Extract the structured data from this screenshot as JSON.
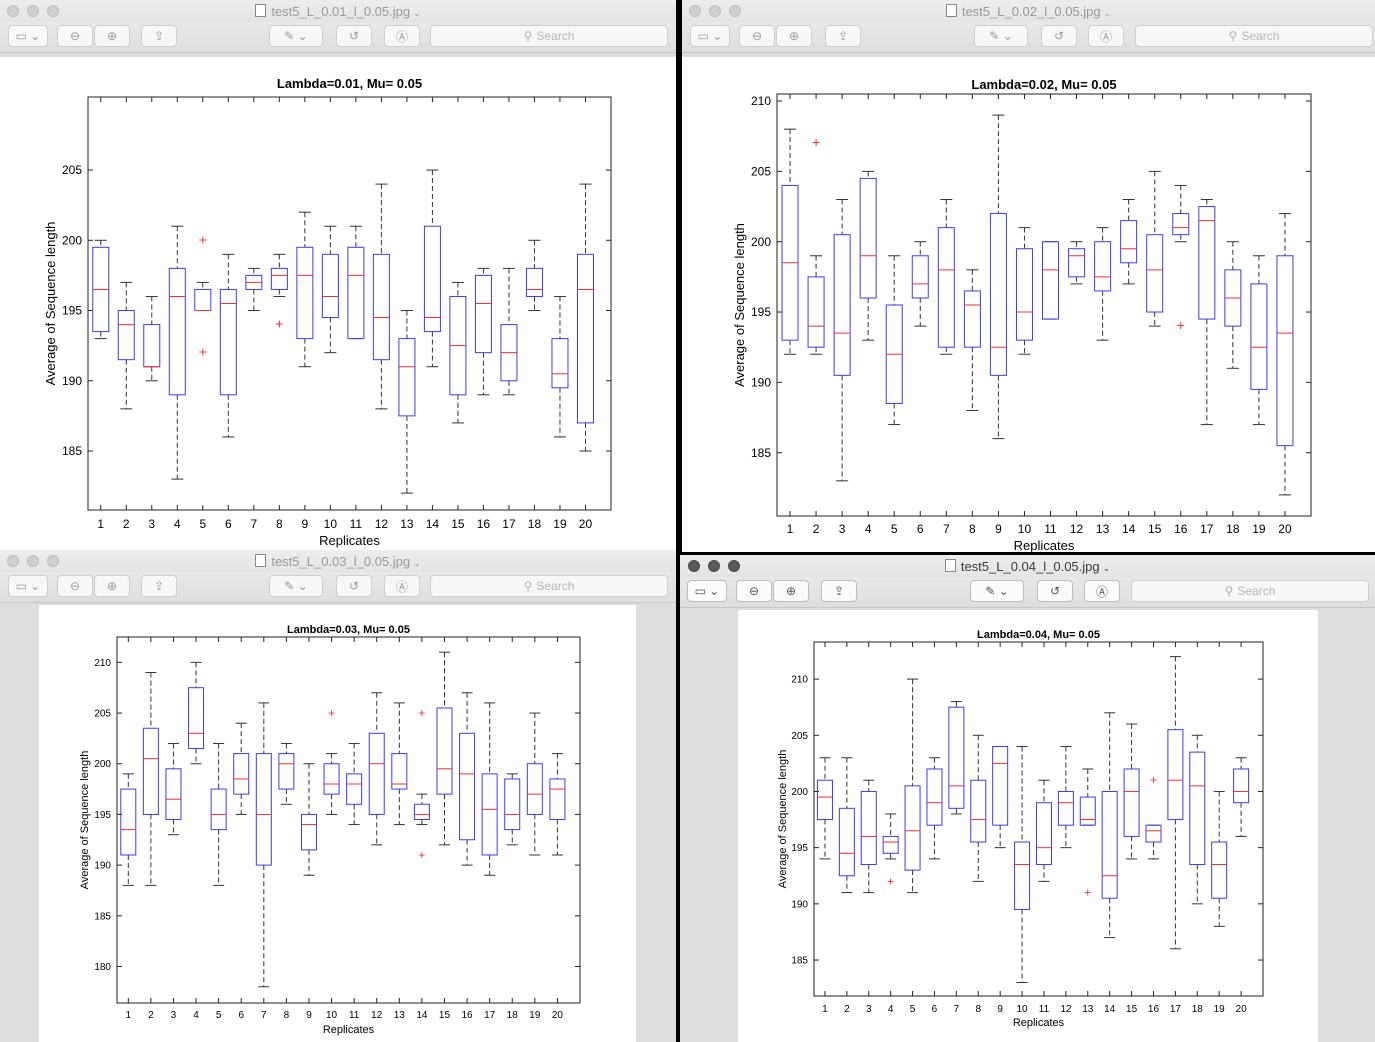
{
  "search_placeholder": "Search",
  "icons": [
    "sidebar-icon",
    "zoom-out-icon",
    "zoom-in-icon",
    "share-icon",
    "markup-pen-icon",
    "rotate-icon",
    "annotate-icon",
    "search-icon"
  ],
  "windows": [
    {
      "file_name": "test5_L_0.01_l_0.05.jpg",
      "chart_data": {
        "type": "box",
        "title": "Lambda=0.01, Mu= 0.05",
        "xlabel": "Replicates",
        "ylabel": "Average of Sequence length",
        "ylim": [
          180.8,
          210.2
        ],
        "yticks": [
          185,
          190,
          195,
          200,
          205
        ],
        "categories": [
          "1",
          "2",
          "3",
          "4",
          "5",
          "6",
          "7",
          "8",
          "9",
          "10",
          "11",
          "12",
          "13",
          "14",
          "15",
          "16",
          "17",
          "18",
          "19",
          "20"
        ],
        "boxes": [
          {
            "q1": 193.5,
            "median": 196.5,
            "q3": 199.5,
            "whisker_low": 193,
            "whisker_high": 200,
            "outliers": []
          },
          {
            "q1": 191.5,
            "median": 194,
            "q3": 195,
            "whisker_low": 188,
            "whisker_high": 197,
            "outliers": []
          },
          {
            "q1": 191,
            "median": 191,
            "q3": 194,
            "whisker_low": 190,
            "whisker_high": 196,
            "outliers": []
          },
          {
            "q1": 189,
            "median": 196,
            "q3": 198,
            "whisker_low": 183,
            "whisker_high": 201,
            "outliers": []
          },
          {
            "q1": 195,
            "median": 195,
            "q3": 196.5,
            "whisker_low": 195,
            "whisker_high": 197,
            "outliers": [
              200,
              192
            ]
          },
          {
            "q1": 189,
            "median": 195.5,
            "q3": 196.5,
            "whisker_low": 186,
            "whisker_high": 199,
            "outliers": []
          },
          {
            "q1": 196.5,
            "median": 197,
            "q3": 197.5,
            "whisker_low": 195,
            "whisker_high": 198,
            "outliers": []
          },
          {
            "q1": 196.5,
            "median": 197.5,
            "q3": 198,
            "whisker_low": 196,
            "whisker_high": 199,
            "outliers": [
              194
            ]
          },
          {
            "q1": 193,
            "median": 197.5,
            "q3": 199.5,
            "whisker_low": 191,
            "whisker_high": 202,
            "outliers": []
          },
          {
            "q1": 194.5,
            "median": 196,
            "q3": 199,
            "whisker_low": 192,
            "whisker_high": 201,
            "outliers": []
          },
          {
            "q1": 193,
            "median": 197.5,
            "q3": 199.5,
            "whisker_low": 193,
            "whisker_high": 201,
            "outliers": []
          },
          {
            "q1": 191.5,
            "median": 194.5,
            "q3": 199,
            "whisker_low": 188,
            "whisker_high": 204,
            "outliers": []
          },
          {
            "q1": 187.5,
            "median": 191,
            "q3": 193,
            "whisker_low": 182,
            "whisker_high": 195,
            "outliers": []
          },
          {
            "q1": 193.5,
            "median": 194.5,
            "q3": 201,
            "whisker_low": 191,
            "whisker_high": 205,
            "outliers": []
          },
          {
            "q1": 189,
            "median": 192.5,
            "q3": 196,
            "whisker_low": 187,
            "whisker_high": 197,
            "outliers": []
          },
          {
            "q1": 192,
            "median": 195.5,
            "q3": 197.5,
            "whisker_low": 189,
            "whisker_high": 198,
            "outliers": []
          },
          {
            "q1": 190,
            "median": 192,
            "q3": 194,
            "whisker_low": 189,
            "whisker_high": 198,
            "outliers": []
          },
          {
            "q1": 196,
            "median": 196.5,
            "q3": 198,
            "whisker_low": 195,
            "whisker_high": 200,
            "outliers": []
          },
          {
            "q1": 189.5,
            "median": 190.5,
            "q3": 193,
            "whisker_low": 186,
            "whisker_high": 196,
            "outliers": []
          },
          {
            "q1": 187,
            "median": 196.5,
            "q3": 199,
            "whisker_low": 185,
            "whisker_high": 204,
            "outliers": []
          }
        ]
      }
    },
    {
      "file_name": "test5_L_0.02_l_0.05.jpg",
      "chart_data": {
        "type": "box",
        "title": "Lambda=0.02, Mu= 0.05",
        "xlabel": "Replicates",
        "ylabel": "Average of Sequence length",
        "ylim": [
          180.5,
          210.5
        ],
        "yticks": [
          185,
          190,
          195,
          200,
          205,
          210
        ],
        "categories": [
          "1",
          "2",
          "3",
          "4",
          "5",
          "6",
          "7",
          "8",
          "9",
          "10",
          "11",
          "12",
          "13",
          "14",
          "15",
          "16",
          "17",
          "18",
          "19",
          "20"
        ],
        "boxes": [
          {
            "q1": 193,
            "median": 198.5,
            "q3": 204,
            "whisker_low": 192,
            "whisker_high": 208,
            "outliers": []
          },
          {
            "q1": 192.5,
            "median": 194,
            "q3": 197.5,
            "whisker_low": 192,
            "whisker_high": 199,
            "outliers": [
              207
            ]
          },
          {
            "q1": 190.5,
            "median": 193.5,
            "q3": 200.5,
            "whisker_low": 183,
            "whisker_high": 203,
            "outliers": []
          },
          {
            "q1": 196,
            "median": 199,
            "q3": 204.5,
            "whisker_low": 193,
            "whisker_high": 205,
            "outliers": []
          },
          {
            "q1": 188.5,
            "median": 192,
            "q3": 195.5,
            "whisker_low": 187,
            "whisker_high": 199,
            "outliers": []
          },
          {
            "q1": 196,
            "median": 197,
            "q3": 199,
            "whisker_low": 194,
            "whisker_high": 200,
            "outliers": []
          },
          {
            "q1": 192.5,
            "median": 198,
            "q3": 201,
            "whisker_low": 192,
            "whisker_high": 203,
            "outliers": []
          },
          {
            "q1": 192.5,
            "median": 195.5,
            "q3": 196.5,
            "whisker_low": 188,
            "whisker_high": 198,
            "outliers": []
          },
          {
            "q1": 190.5,
            "median": 192.5,
            "q3": 202,
            "whisker_low": 186,
            "whisker_high": 209,
            "outliers": []
          },
          {
            "q1": 193,
            "median": 195,
            "q3": 199.5,
            "whisker_low": 192,
            "whisker_high": 201,
            "outliers": []
          },
          {
            "q1": 194.5,
            "median": 198,
            "q3": 200,
            "whisker_low": 194.5,
            "whisker_high": 200,
            "outliers": []
          },
          {
            "q1": 197.5,
            "median": 199,
            "q3": 199.5,
            "whisker_low": 197,
            "whisker_high": 200,
            "outliers": []
          },
          {
            "q1": 196.5,
            "median": 197.5,
            "q3": 200,
            "whisker_low": 193,
            "whisker_high": 201,
            "outliers": []
          },
          {
            "q1": 198.5,
            "median": 199.5,
            "q3": 201.5,
            "whisker_low": 197,
            "whisker_high": 203,
            "outliers": []
          },
          {
            "q1": 195,
            "median": 198,
            "q3": 200.5,
            "whisker_low": 194,
            "whisker_high": 205,
            "outliers": []
          },
          {
            "q1": 200.5,
            "median": 201,
            "q3": 202,
            "whisker_low": 200,
            "whisker_high": 204,
            "outliers": [
              194
            ]
          },
          {
            "q1": 194.5,
            "median": 201.5,
            "q3": 202.5,
            "whisker_low": 187,
            "whisker_high": 203,
            "outliers": []
          },
          {
            "q1": 194,
            "median": 196,
            "q3": 198,
            "whisker_low": 191,
            "whisker_high": 200,
            "outliers": []
          },
          {
            "q1": 189.5,
            "median": 192.5,
            "q3": 197,
            "whisker_low": 187,
            "whisker_high": 199,
            "outliers": []
          },
          {
            "q1": 185.5,
            "median": 193.5,
            "q3": 199,
            "whisker_low": 182,
            "whisker_high": 202,
            "outliers": []
          }
        ]
      }
    },
    {
      "file_name": "test5_L_0.03_l_0.05.jpg",
      "chart_data": {
        "type": "box",
        "title": "Lambda=0.03, Mu= 0.05",
        "xlabel": "Replicates",
        "ylabel": "Average of Sequence length",
        "ylim": [
          176.4,
          212.5
        ],
        "yticks": [
          180,
          185,
          190,
          195,
          200,
          205,
          210
        ],
        "categories": [
          "1",
          "2",
          "3",
          "4",
          "5",
          "6",
          "7",
          "8",
          "9",
          "10",
          "11",
          "12",
          "13",
          "14",
          "15",
          "16",
          "17",
          "18",
          "19",
          "20"
        ],
        "boxes": [
          {
            "q1": 191,
            "median": 193.5,
            "q3": 197.5,
            "whisker_low": 188,
            "whisker_high": 199,
            "outliers": []
          },
          {
            "q1": 195,
            "median": 200.5,
            "q3": 203.5,
            "whisker_low": 188,
            "whisker_high": 209,
            "outliers": []
          },
          {
            "q1": 194.5,
            "median": 196.5,
            "q3": 199.5,
            "whisker_low": 193,
            "whisker_high": 202,
            "outliers": []
          },
          {
            "q1": 201.5,
            "median": 203,
            "q3": 207.5,
            "whisker_low": 200,
            "whisker_high": 210,
            "outliers": []
          },
          {
            "q1": 193.5,
            "median": 195,
            "q3": 197.5,
            "whisker_low": 188,
            "whisker_high": 202,
            "outliers": []
          },
          {
            "q1": 197,
            "median": 198.5,
            "q3": 201,
            "whisker_low": 195,
            "whisker_high": 204,
            "outliers": []
          },
          {
            "q1": 190,
            "median": 195,
            "q3": 201,
            "whisker_low": 178,
            "whisker_high": 206,
            "outliers": []
          },
          {
            "q1": 197.5,
            "median": 200,
            "q3": 201,
            "whisker_low": 196,
            "whisker_high": 202,
            "outliers": []
          },
          {
            "q1": 191.5,
            "median": 194,
            "q3": 195,
            "whisker_low": 189,
            "whisker_high": 200,
            "outliers": []
          },
          {
            "q1": 197,
            "median": 198,
            "q3": 200,
            "whisker_low": 195,
            "whisker_high": 201,
            "outliers": [
              205
            ]
          },
          {
            "q1": 196,
            "median": 198,
            "q3": 199,
            "whisker_low": 194,
            "whisker_high": 202,
            "outliers": []
          },
          {
            "q1": 195,
            "median": 200,
            "q3": 203,
            "whisker_low": 192,
            "whisker_high": 207,
            "outliers": []
          },
          {
            "q1": 197.5,
            "median": 198,
            "q3": 201,
            "whisker_low": 194,
            "whisker_high": 206,
            "outliers": []
          },
          {
            "q1": 194.5,
            "median": 195,
            "q3": 196,
            "whisker_low": 194,
            "whisker_high": 197,
            "outliers": [
              205,
              191
            ]
          },
          {
            "q1": 197,
            "median": 199.5,
            "q3": 205.5,
            "whisker_low": 192,
            "whisker_high": 211,
            "outliers": []
          },
          {
            "q1": 192.5,
            "median": 199,
            "q3": 203,
            "whisker_low": 190,
            "whisker_high": 207,
            "outliers": []
          },
          {
            "q1": 191,
            "median": 195.5,
            "q3": 199,
            "whisker_low": 189,
            "whisker_high": 206,
            "outliers": []
          },
          {
            "q1": 193.5,
            "median": 195,
            "q3": 198.5,
            "whisker_low": 192,
            "whisker_high": 199,
            "outliers": []
          },
          {
            "q1": 195,
            "median": 197,
            "q3": 200,
            "whisker_low": 191,
            "whisker_high": 205,
            "outliers": []
          },
          {
            "q1": 194.5,
            "median": 197.5,
            "q3": 198.5,
            "whisker_low": 191,
            "whisker_high": 201,
            "outliers": []
          }
        ]
      }
    },
    {
      "file_name": "test5_L_0.04_l_0.05.jpg",
      "chart_data": {
        "type": "box",
        "title": "Lambda=0.04, Mu= 0.05",
        "xlabel": "Replicates",
        "ylabel": "Average of Sequence length",
        "ylim": [
          181.8,
          213.3
        ],
        "yticks": [
          185,
          190,
          195,
          200,
          205,
          210
        ],
        "categories": [
          "1",
          "2",
          "3",
          "4",
          "5",
          "6",
          "7",
          "8",
          "9",
          "10",
          "11",
          "12",
          "13",
          "14",
          "15",
          "16",
          "17",
          "18",
          "19",
          "20"
        ],
        "boxes": [
          {
            "q1": 197.5,
            "median": 199.5,
            "q3": 201,
            "whisker_low": 194,
            "whisker_high": 203,
            "outliers": []
          },
          {
            "q1": 192.5,
            "median": 194.5,
            "q3": 198.5,
            "whisker_low": 191,
            "whisker_high": 203,
            "outliers": []
          },
          {
            "q1": 193.5,
            "median": 196,
            "q3": 200,
            "whisker_low": 191,
            "whisker_high": 201,
            "outliers": []
          },
          {
            "q1": 194.5,
            "median": 195.5,
            "q3": 196,
            "whisker_low": 194,
            "whisker_high": 198,
            "outliers": [
              192
            ]
          },
          {
            "q1": 193,
            "median": 196.5,
            "q3": 200.5,
            "whisker_low": 191,
            "whisker_high": 210,
            "outliers": []
          },
          {
            "q1": 197,
            "median": 199,
            "q3": 202,
            "whisker_low": 194,
            "whisker_high": 203,
            "outliers": []
          },
          {
            "q1": 198.5,
            "median": 200.5,
            "q3": 207.5,
            "whisker_low": 198,
            "whisker_high": 208,
            "outliers": []
          },
          {
            "q1": 195.5,
            "median": 197.5,
            "q3": 201,
            "whisker_low": 192,
            "whisker_high": 205,
            "outliers": []
          },
          {
            "q1": 197,
            "median": 202.5,
            "q3": 204,
            "whisker_low": 195,
            "whisker_high": 204,
            "outliers": []
          },
          {
            "q1": 189.5,
            "median": 193.5,
            "q3": 195.5,
            "whisker_low": 183,
            "whisker_high": 204,
            "outliers": []
          },
          {
            "q1": 193.5,
            "median": 195,
            "q3": 199,
            "whisker_low": 192,
            "whisker_high": 201,
            "outliers": []
          },
          {
            "q1": 197,
            "median": 199,
            "q3": 200,
            "whisker_low": 195,
            "whisker_high": 204,
            "outliers": []
          },
          {
            "q1": 197,
            "median": 197.5,
            "q3": 199.5,
            "whisker_low": 197,
            "whisker_high": 202,
            "outliers": [
              191
            ]
          },
          {
            "q1": 190.5,
            "median": 192.5,
            "q3": 200,
            "whisker_low": 187,
            "whisker_high": 207,
            "outliers": []
          },
          {
            "q1": 196,
            "median": 200,
            "q3": 202,
            "whisker_low": 194,
            "whisker_high": 206,
            "outliers": []
          },
          {
            "q1": 195.5,
            "median": 196.5,
            "q3": 197,
            "whisker_low": 194,
            "whisker_high": 197,
            "outliers": [
              201
            ]
          },
          {
            "q1": 197.5,
            "median": 201,
            "q3": 205.5,
            "whisker_low": 186,
            "whisker_high": 212,
            "outliers": []
          },
          {
            "q1": 193.5,
            "median": 200.5,
            "q3": 203.5,
            "whisker_low": 190,
            "whisker_high": 205,
            "outliers": []
          },
          {
            "q1": 190.5,
            "median": 193.5,
            "q3": 195.5,
            "whisker_low": 188,
            "whisker_high": 200,
            "outliers": []
          },
          {
            "q1": 199,
            "median": 200,
            "q3": 202,
            "whisker_low": 196,
            "whisker_high": 203,
            "outliers": []
          }
        ]
      }
    }
  ]
}
